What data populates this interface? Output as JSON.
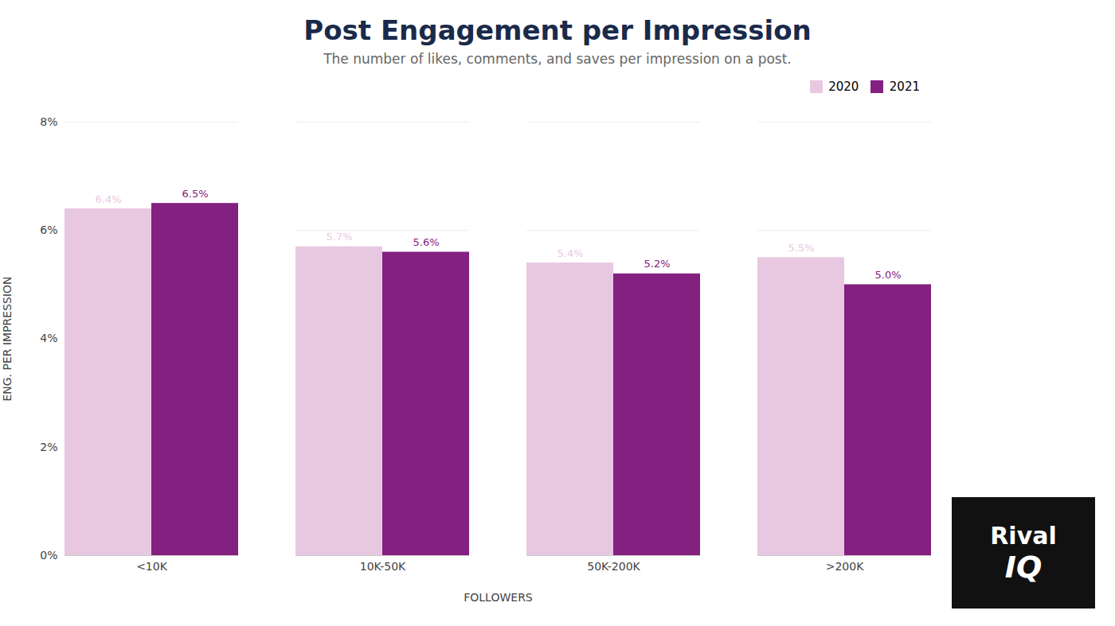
{
  "chart_data": {
    "type": "bar",
    "title": "Post Engagement per Impression",
    "subtitle": "The number of likes, comments, and saves per impression on a post.",
    "xlabel": "FOLLOWERS",
    "ylabel": "ENG. PER IMPRESSION",
    "categories": [
      "<10K",
      "10K-50K",
      "50K-200K",
      ">200K"
    ],
    "series": [
      {
        "name": "2020",
        "color": "#e8c8e0",
        "values": [
          6.4,
          5.7,
          5.4,
          5.5
        ],
        "value_labels": [
          "6.4%",
          "5.7%",
          "5.4%",
          "5.5%"
        ]
      },
      {
        "name": "2021",
        "color": "#832080",
        "values": [
          6.5,
          5.6,
          5.2,
          5.0
        ],
        "value_labels": [
          "6.5%",
          "5.6%",
          "5.2%",
          "5.0%"
        ]
      }
    ],
    "ylim": [
      0,
      8
    ],
    "yticks": [
      {
        "value": 0,
        "label": "0%"
      },
      {
        "value": 2,
        "label": "2%"
      },
      {
        "value": 4,
        "label": "4%"
      },
      {
        "value": 6,
        "label": "6%"
      },
      {
        "value": 8,
        "label": "8%"
      }
    ],
    "grid": true,
    "legend": "upper right",
    "data_labels": true,
    "annotations": [
      "Rival",
      "IQ"
    ]
  }
}
